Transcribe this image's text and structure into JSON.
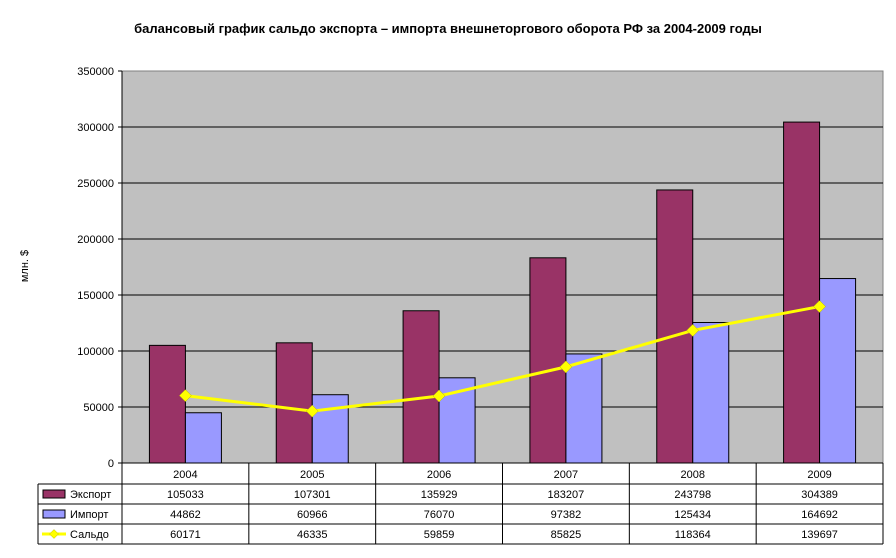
{
  "chart_data": {
    "type": "bar",
    "title": "балансовый график сальдо экспорта – импорта внешнеторгового оборота РФ за 2004-2009 годы",
    "ylabel": "млн. $",
    "xlabel": "",
    "ylim": [
      0,
      350000
    ],
    "yticks": [
      0,
      50000,
      100000,
      150000,
      200000,
      250000,
      300000,
      350000
    ],
    "grid": true,
    "legend": "data-table",
    "categories": [
      "2004",
      "2005",
      "2006",
      "2007",
      "2008",
      "2009"
    ],
    "series": [
      {
        "name": "Экспорт",
        "kind": "bar",
        "color": "#993366",
        "values": [
          105033,
          107301,
          135929,
          183207,
          243798,
          304389
        ]
      },
      {
        "name": "Импорт",
        "kind": "bar",
        "color": "#9999FF",
        "values": [
          44862,
          60966,
          76070,
          97382,
          125434,
          164692
        ]
      },
      {
        "name": "Сальдо",
        "kind": "line",
        "color": "#FFFF00",
        "values": [
          60171,
          46335,
          59859,
          85825,
          118364,
          139697
        ]
      }
    ]
  }
}
